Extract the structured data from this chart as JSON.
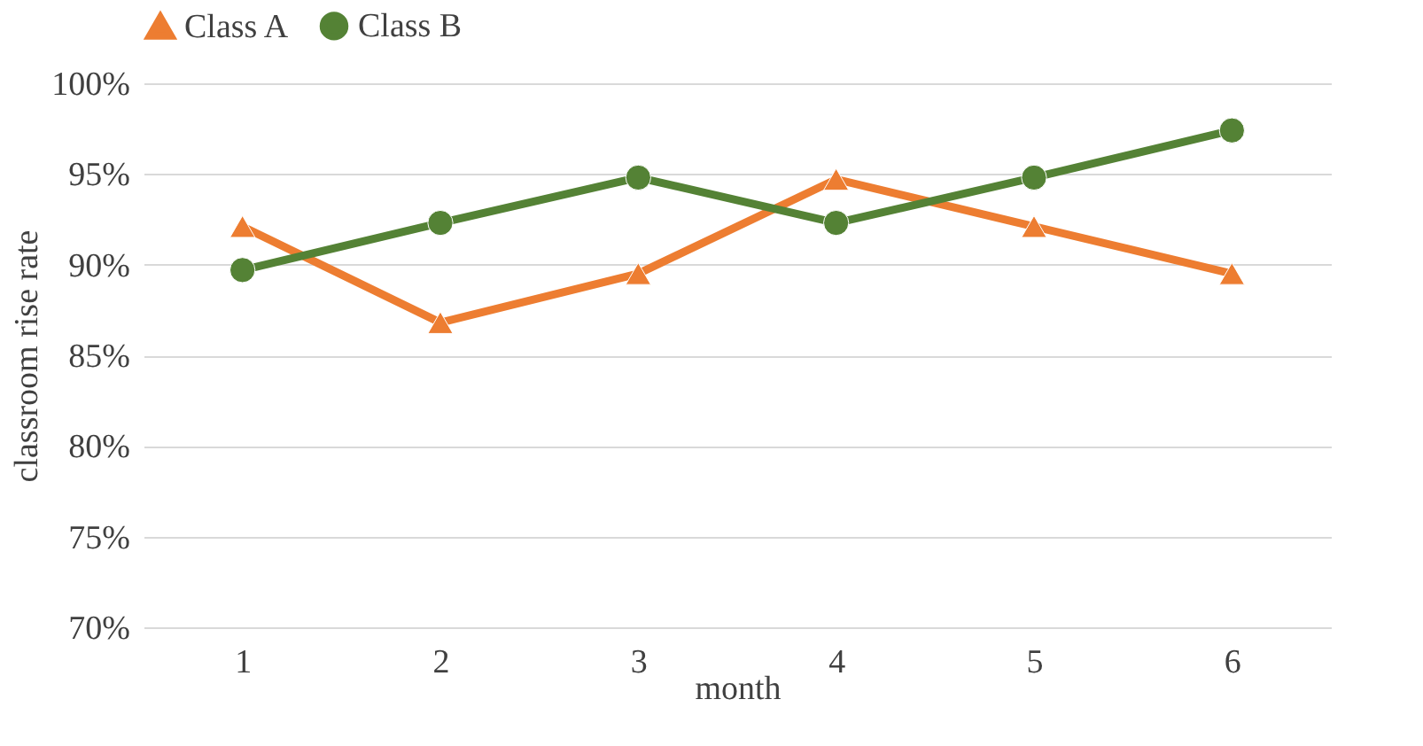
{
  "chart_data": {
    "type": "line",
    "xlabel": "month",
    "ylabel": "classroom rise rate",
    "categories": [
      "1",
      "2",
      "3",
      "4",
      "5",
      "6"
    ],
    "series": [
      {
        "name": "Class A",
        "color": "#ed7d31",
        "marker": "triangle",
        "values": [
          92.1,
          86.8,
          89.5,
          94.7,
          92.1,
          89.5
        ]
      },
      {
        "name": "Class B",
        "color": "#548235",
        "marker": "circle",
        "values": [
          89.7,
          92.3,
          94.8,
          92.3,
          94.8,
          97.4
        ]
      }
    ],
    "ylim": [
      70,
      100
    ],
    "yticks": [
      {
        "value": 70,
        "label": "70%"
      },
      {
        "value": 75,
        "label": "75%"
      },
      {
        "value": 80,
        "label": "80%"
      },
      {
        "value": 85,
        "label": "85%"
      },
      {
        "value": 90,
        "label": "90%"
      },
      {
        "value": 95,
        "label": "95%"
      },
      {
        "value": 100,
        "label": "100%"
      }
    ],
    "grid": "y",
    "legend": "top",
    "line_style": "solid"
  }
}
